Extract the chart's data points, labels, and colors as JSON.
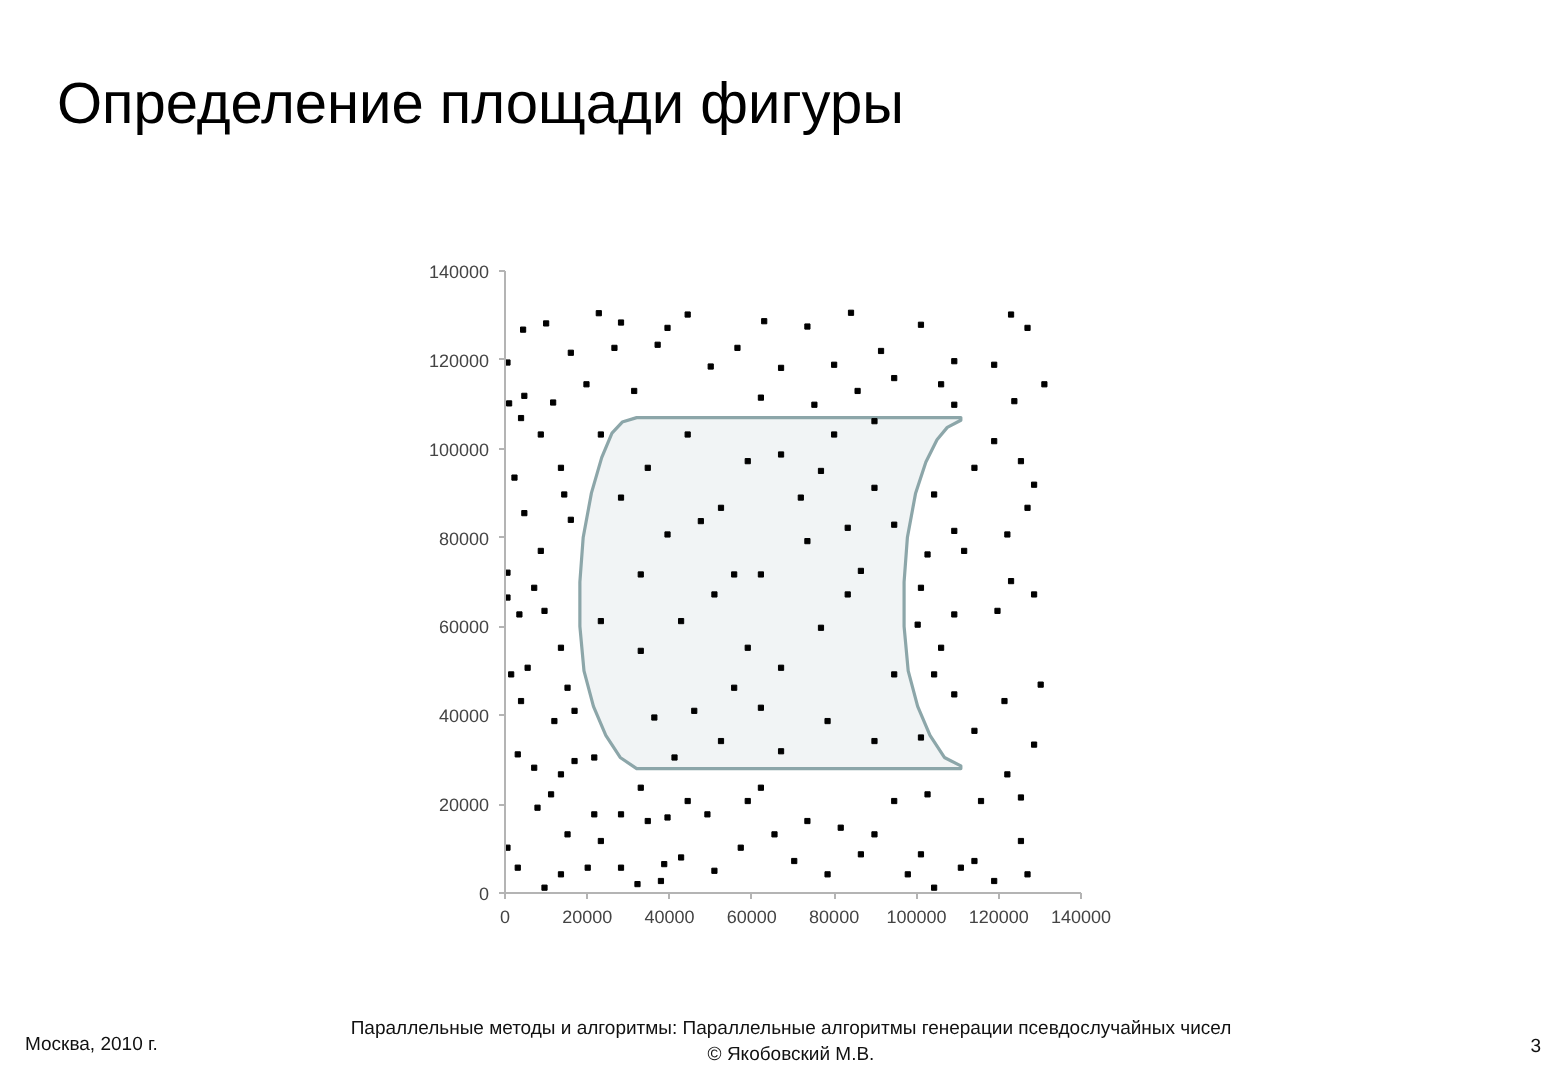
{
  "chart_data": {
    "type": "scatter",
    "title": "Определение площади фигуры",
    "annotations": [
      "Москва, 2010 г.",
      "Параллельные методы и алгоритмы: Параллельные алгоритмы генерации псевдослучайных чисел",
      "© Якобовский М.В.",
      "3"
    ],
    "xlim": [
      0,
      140000
    ],
    "ylim": [
      0,
      140000
    ],
    "xticks": [
      0,
      20000,
      40000,
      60000,
      80000,
      100000,
      120000,
      140000
    ],
    "yticks": [
      0,
      20000,
      40000,
      60000,
      80000,
      100000,
      120000,
      140000
    ],
    "series": [
      {
        "type": "area",
        "color": "#8ca6a9",
        "x": [
          32000,
          110800,
          110800,
          107500,
          105000,
          102300,
          99800,
          97800,
          97000,
          97000,
          98000,
          100300,
          103300,
          106800,
          110800,
          110800,
          32000,
          28000,
          24500,
          21500,
          19200,
          18200,
          18200,
          19000,
          21000,
          23500,
          26000,
          28500,
          32000
        ],
        "values": [
          107000,
          107000,
          106400,
          104800,
          102000,
          97000,
          90000,
          80000,
          70000,
          60000,
          50000,
          42000,
          35500,
          30500,
          28600,
          28000,
          28000,
          30500,
          35500,
          42000,
          50000,
          60000,
          70000,
          80000,
          90000,
          98000,
          103500,
          106000,
          107000
        ]
      },
      {
        "color": "#000000",
        "marker": "square",
        "x": [
          22800,
          44400,
          4400,
          10000,
          28200,
          600,
          16000,
          26600,
          37100,
          39500,
          50000,
          56500,
          1000,
          4700,
          11700,
          19800,
          31400,
          3900,
          8700,
          23300,
          2300,
          13600,
          4700,
          14400,
          16000,
          8700,
          600,
          7100,
          28200,
          34700,
          39500,
          47600,
          52500,
          59000,
          44400,
          33000,
          55700,
          84100,
          123000,
          63000,
          101100,
          127000,
          73500,
          91400,
          109200,
          118900,
          67100,
          80000,
          94600,
          131100,
          106000,
          62200,
          85700,
          123800,
          109200,
          75200,
          118900,
          125400,
          114100,
          128600,
          127000,
          104300,
          109200,
          122100,
          102700,
          111600,
          101100,
          123000,
          67100,
          76800,
          71900,
          89800,
          83300,
          73500,
          94600,
          62200,
          86500,
          80000,
          89800,
          3500,
          9600,
          13600,
          5500,
          1500,
          15200,
          3900,
          12000,
          16900,
          3100,
          7100,
          16900,
          21700,
          13600,
          11200,
          7900,
          21700,
          28200,
          34700,
          39500,
          44400,
          33000,
          49200,
          57300,
          600,
          3100,
          9600,
          13600,
          20100,
          28200,
          32200,
          37900,
          38700,
          42800,
          50900,
          23300,
          15200,
          600,
          23300,
          33000,
          42800,
          36300,
          46000,
          52500,
          41200,
          50900,
          59000,
          55700,
          128600,
          119700,
          109200,
          100300,
          106000,
          130200,
          121400,
          109200,
          104300,
          114100,
          128600,
          101100,
          122100,
          115700,
          125400,
          102700,
          94600,
          89800,
          81600,
          73500,
          65500,
          70300,
          78400,
          97900,
          104300,
          110800,
          118900,
          127000,
          114100,
          101100,
          86500,
          59000,
          62200,
          125400,
          83300,
          67100,
          78400,
          67100,
          89800,
          94600,
          76800,
          62200
        ],
        "values": [
          130500,
          130200,
          126800,
          128200,
          128400,
          119400,
          121600,
          122700,
          123400,
          127200,
          118500,
          122700,
          110200,
          111900,
          110400,
          114500,
          113000,
          106900,
          103200,
          103200,
          93500,
          95700,
          85500,
          89700,
          84000,
          77000,
          72100,
          68700,
          89000,
          95700,
          80700,
          83700,
          86700,
          97200,
          103200,
          71700,
          71700,
          130600,
          130200,
          128700,
          127900,
          127200,
          127500,
          122000,
          119700,
          118900,
          118200,
          118900,
          115900,
          114500,
          114500,
          111500,
          113000,
          110700,
          109900,
          109900,
          101700,
          97200,
          95700,
          91900,
          86700,
          89700,
          81500,
          80700,
          76200,
          77000,
          68700,
          70200,
          98700,
          95000,
          89000,
          91200,
          82200,
          79200,
          82900,
          71700,
          72500,
          103200,
          106200,
          62700,
          63500,
          55200,
          50700,
          49200,
          46200,
          43200,
          38700,
          41000,
          31200,
          28200,
          29700,
          30500,
          26700,
          22200,
          19200,
          17700,
          17700,
          16200,
          17000,
          20700,
          23700,
          17700,
          10200,
          10200,
          5700,
          1200,
          4200,
          5700,
          5700,
          2000,
          2700,
          6500,
          8000,
          5000,
          11700,
          13200,
          66500,
          61200,
          54500,
          61200,
          39500,
          41000,
          34200,
          30500,
          67200,
          55200,
          46200,
          67200,
          63500,
          62700,
          60400,
          55200,
          46900,
          43200,
          44700,
          49200,
          36500,
          33400,
          35000,
          26700,
          20700,
          21500,
          22200,
          20700,
          13200,
          14700,
          16200,
          13200,
          7200,
          4200,
          4200,
          1200,
          5700,
          2700,
          4200,
          7200,
          8700,
          8700,
          20700,
          23700,
          11700,
          67200,
          50700,
          38700,
          31900,
          34200,
          49200,
          59700,
          41700
        ]
      }
    ]
  }
}
